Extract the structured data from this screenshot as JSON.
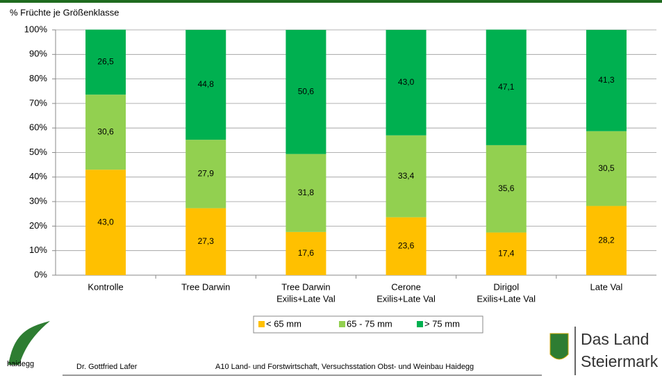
{
  "chart_data": {
    "type": "stacked_bar",
    "y_axis_title": "% Früchte je Größenklasse",
    "categories": [
      [
        "Kontrolle"
      ],
      [
        "Tree Darwin"
      ],
      [
        "Tree Darwin",
        "Exilis+Late Val"
      ],
      [
        "Cerone",
        "Exilis+Late Val"
      ],
      [
        "Dirigol",
        "Exilis+Late Val"
      ],
      [
        "Late Val"
      ]
    ],
    "series": [
      {
        "name": "< 65 mm",
        "color": "#ffc000",
        "values": [
          43.0,
          27.3,
          17.6,
          23.6,
          17.4,
          28.2
        ],
        "value_labels": [
          "43,0",
          "27,3",
          "17,6",
          "23,6",
          "17,4",
          "28,2"
        ]
      },
      {
        "name": "65 - 75 mm",
        "color": "#92d050",
        "values": [
          30.6,
          27.9,
          31.8,
          33.4,
          35.6,
          30.5
        ],
        "value_labels": [
          "30,6",
          "27,9",
          "31,8",
          "33,4",
          "35,6",
          "30,5"
        ]
      },
      {
        "name": "> 75 mm",
        "color": "#00b050",
        "values": [
          26.5,
          44.8,
          50.6,
          43.0,
          47.1,
          41.3
        ],
        "value_labels": [
          "26,5",
          "44,8",
          "50,6",
          "43,0",
          "47,1",
          "41,3"
        ]
      }
    ],
    "ylim": [
      0,
      100
    ],
    "yticks": [
      {
        "value": 0,
        "label": "0%"
      },
      {
        "value": 10,
        "label": "10%"
      },
      {
        "value": 20,
        "label": "20%"
      },
      {
        "value": 30,
        "label": "30%"
      },
      {
        "value": 40,
        "label": "40%"
      },
      {
        "value": 50,
        "label": "50%"
      },
      {
        "value": 60,
        "label": "60%"
      },
      {
        "value": 70,
        "label": "70%"
      },
      {
        "value": 80,
        "label": "80%"
      },
      {
        "value": 90,
        "label": "90%"
      },
      {
        "value": 100,
        "label": "100%"
      }
    ],
    "grid": true,
    "legend": "bottom"
  },
  "footer": {
    "logo_left": "haidegg",
    "author": "Dr. Gottfried Lafer",
    "institution": "A10 Land- und Forstwirtschaft, Versuchsstation Obst- und Weinbau Haidegg",
    "logo_right": [
      "Das Land",
      "Steiermark"
    ]
  }
}
